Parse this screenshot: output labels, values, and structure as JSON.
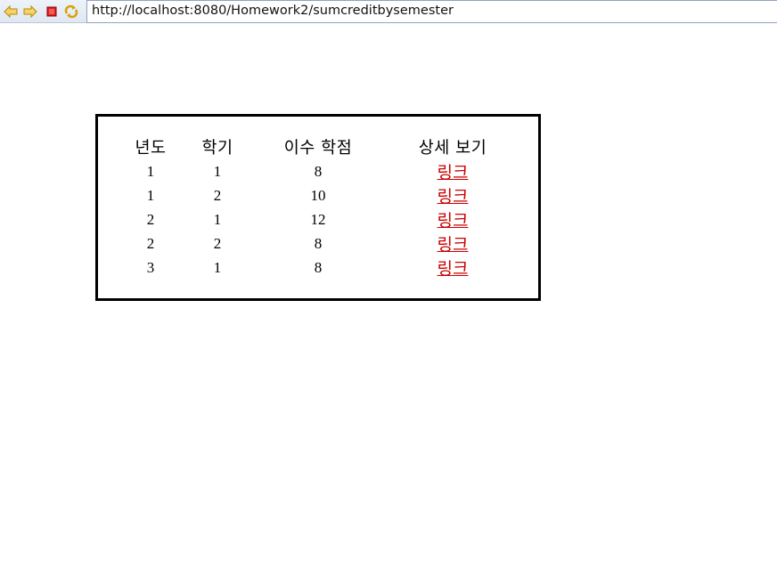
{
  "browser": {
    "url": "http://localhost:8080/Homework2/sumcreditbysemester",
    "icons": [
      "back-icon",
      "forward-icon",
      "stop-icon",
      "refresh-icon"
    ]
  },
  "table": {
    "headers": {
      "year": "년도",
      "semester": "학기",
      "credits": "이수 학점",
      "detail": "상세 보기"
    },
    "rows": [
      {
        "year": "1",
        "semester": "1",
        "credits": "8",
        "link": "링크"
      },
      {
        "year": "1",
        "semester": "2",
        "credits": "10",
        "link": "링크"
      },
      {
        "year": "2",
        "semester": "1",
        "credits": "12",
        "link": "링크"
      },
      {
        "year": "2",
        "semester": "2",
        "credits": "8",
        "link": "링크"
      },
      {
        "year": "3",
        "semester": "1",
        "credits": "8",
        "link": "링크"
      }
    ]
  },
  "colors": {
    "link": "#cc0000",
    "border": "#000000",
    "arrow": "#e8b000",
    "stop": "#e02020"
  }
}
